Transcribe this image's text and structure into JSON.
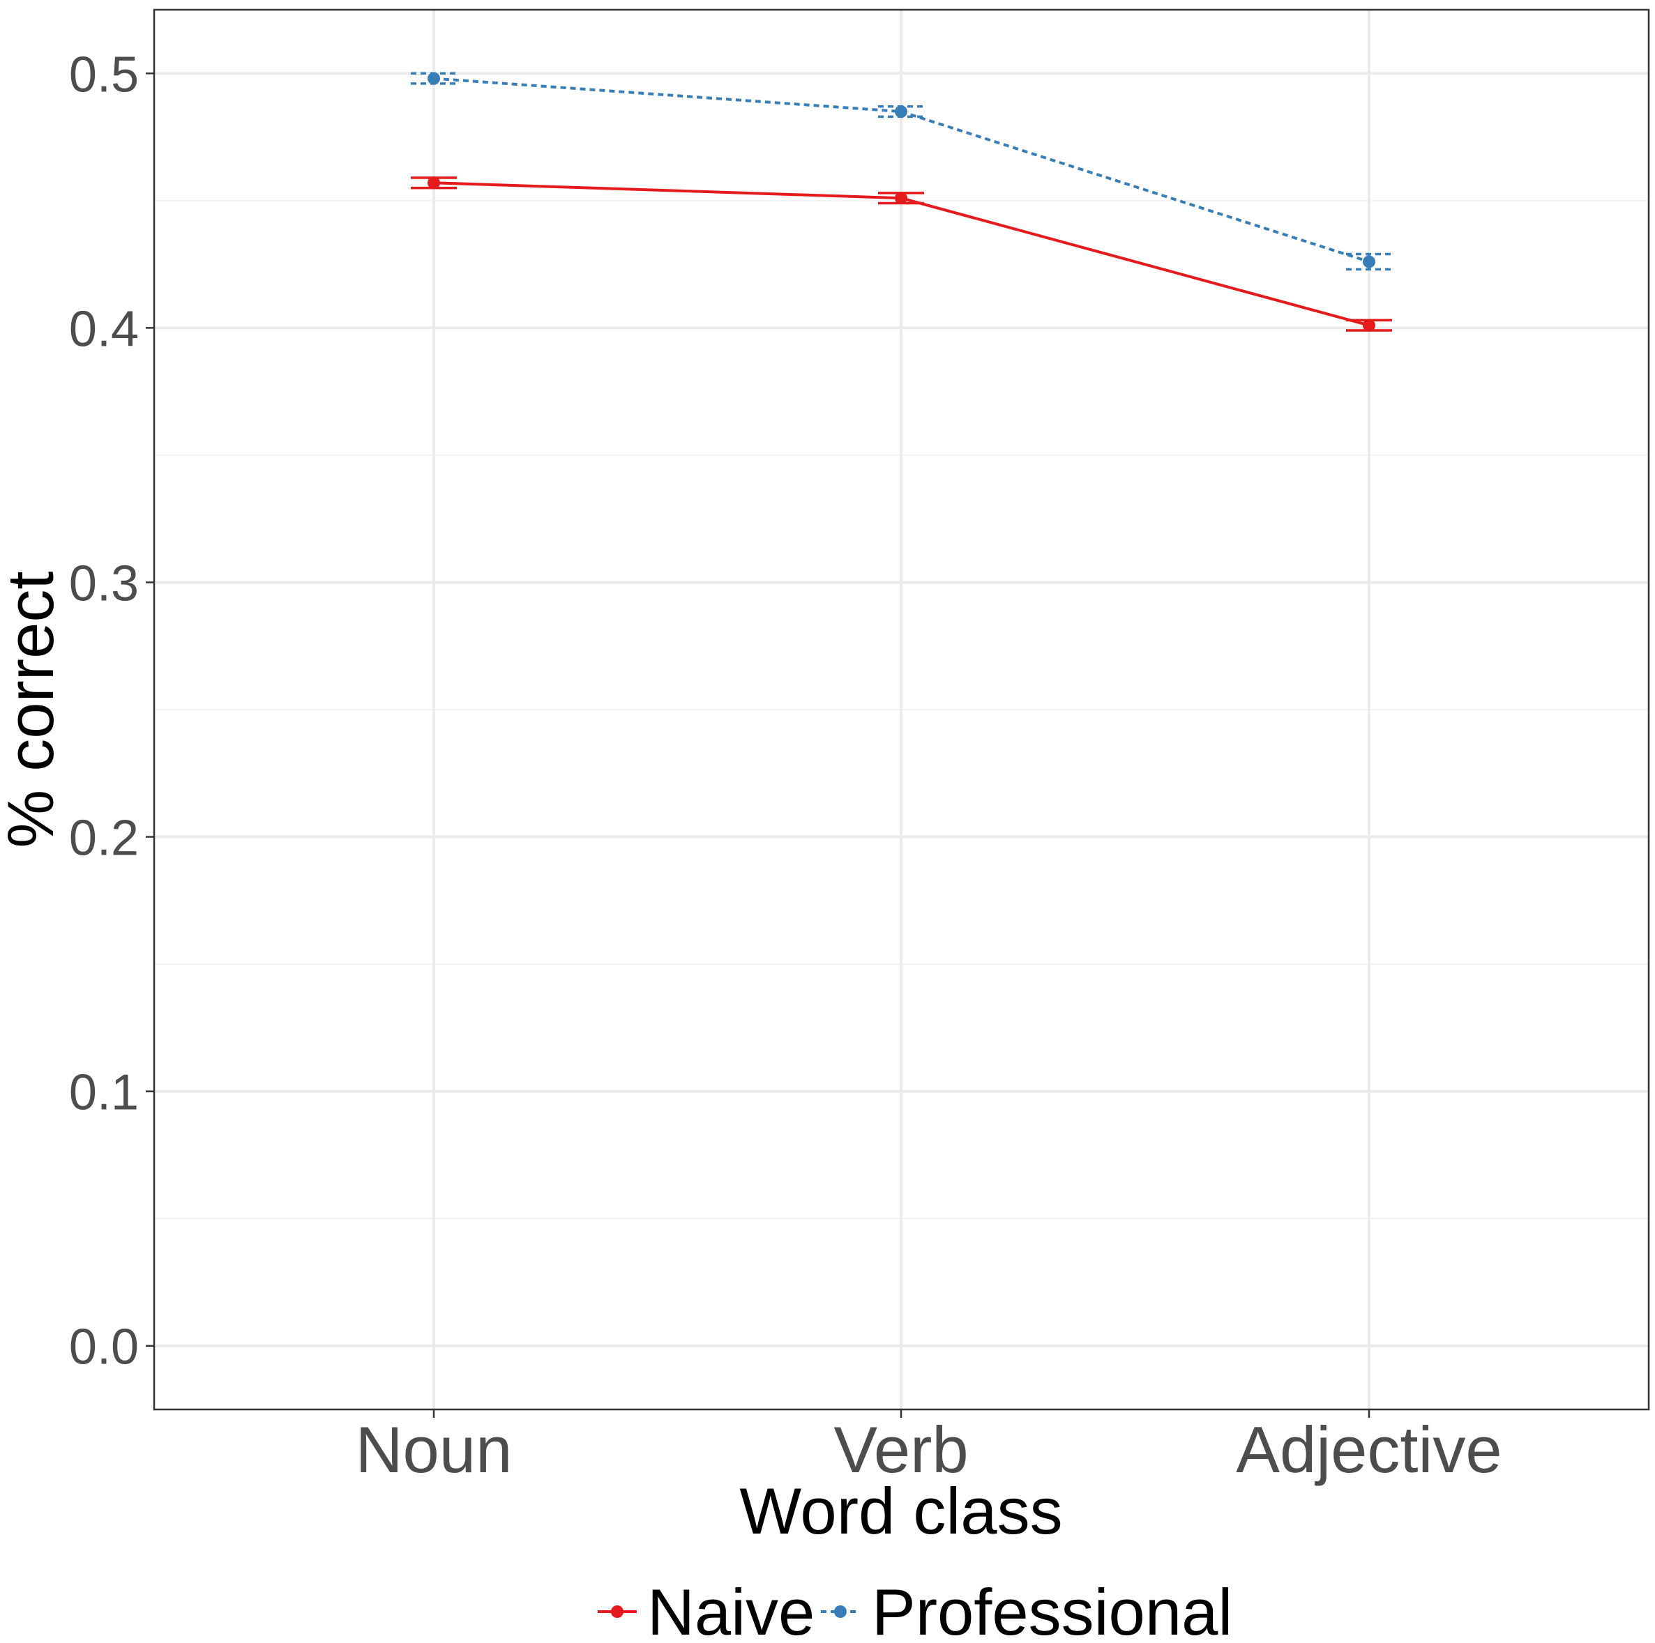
{
  "chart_data": {
    "type": "line",
    "title": "",
    "xlabel": "Word class",
    "ylabel": "% correct",
    "categories": [
      "Noun",
      "Verb",
      "Adjective"
    ],
    "ylim": [
      -0.025,
      0.525
    ],
    "yticks": [
      "0.0",
      "0.1",
      "0.2",
      "0.3",
      "0.4",
      "0.5"
    ],
    "grid": true,
    "legend_position": "bottom",
    "series": [
      {
        "name": "Naive",
        "color": "#e41a1c",
        "linestyle": "solid",
        "values": [
          0.457,
          0.451,
          0.401
        ],
        "errors": [
          0.002,
          0.002,
          0.002
        ]
      },
      {
        "name": "Professional",
        "color": "#377eb8",
        "linestyle": "dotted",
        "values": [
          0.498,
          0.485,
          0.426
        ],
        "errors": [
          0.002,
          0.002,
          0.003
        ]
      }
    ]
  }
}
